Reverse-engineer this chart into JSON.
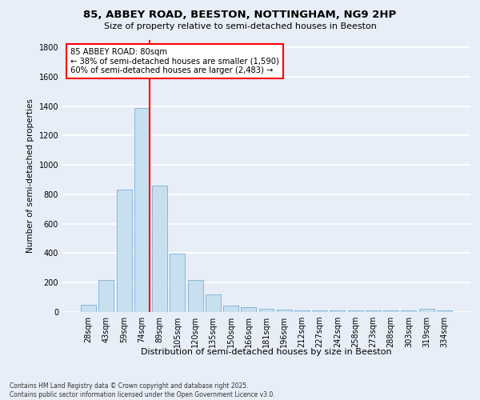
{
  "title_line1": "85, ABBEY ROAD, BEESTON, NOTTINGHAM, NG9 2HP",
  "title_line2": "Size of property relative to semi-detached houses in Beeston",
  "xlabel": "Distribution of semi-detached houses by size in Beeston",
  "ylabel": "Number of semi-detached properties",
  "bar_color": "#c8dff0",
  "bar_edge_color": "#7aafd4",
  "background_color": "#e8eef8",
  "grid_color": "white",
  "categories": [
    "28sqm",
    "43sqm",
    "59sqm",
    "74sqm",
    "89sqm",
    "105sqm",
    "120sqm",
    "135sqm",
    "150sqm",
    "166sqm",
    "181sqm",
    "196sqm",
    "212sqm",
    "227sqm",
    "242sqm",
    "258sqm",
    "273sqm",
    "288sqm",
    "303sqm",
    "319sqm",
    "334sqm"
  ],
  "values": [
    50,
    220,
    830,
    1390,
    860,
    395,
    220,
    120,
    45,
    30,
    20,
    15,
    13,
    13,
    13,
    13,
    13,
    13,
    13,
    20,
    13
  ],
  "vline_x": 3.43,
  "vline_color": "red",
  "annotation_text": "85 ABBEY ROAD: 80sqm\n← 38% of semi-detached houses are smaller (1,590)\n60% of semi-detached houses are larger (2,483) →",
  "ylim": [
    0,
    1850
  ],
  "yticks": [
    0,
    200,
    400,
    600,
    800,
    1000,
    1200,
    1400,
    1600,
    1800
  ],
  "footnote": "Contains HM Land Registry data © Crown copyright and database right 2025.\nContains public sector information licensed under the Open Government Licence v3.0."
}
